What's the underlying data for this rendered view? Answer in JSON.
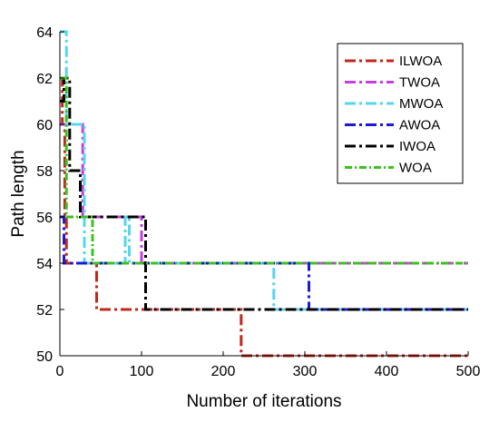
{
  "chart_data": {
    "type": "line",
    "xlabel": "Number of iterations",
    "ylabel": "Path length",
    "xlim": [
      0,
      500
    ],
    "ylim": [
      50,
      64
    ],
    "x_ticks": [
      0,
      100,
      200,
      300,
      400,
      500
    ],
    "y_ticks": [
      50,
      52,
      54,
      56,
      58,
      60,
      62,
      64
    ],
    "grid": false,
    "legend_position": "top-right",
    "series": [
      {
        "name": "ILWOA",
        "color": "#c0281c",
        "dash": "12,4,3,4",
        "points": [
          [
            0,
            62
          ],
          [
            3,
            62
          ],
          [
            3,
            60
          ],
          [
            6,
            60
          ],
          [
            6,
            56
          ],
          [
            8,
            56
          ],
          [
            8,
            54
          ],
          [
            45,
            54
          ],
          [
            45,
            52
          ],
          [
            222,
            52
          ],
          [
            222,
            50
          ],
          [
            500,
            50
          ]
        ]
      },
      {
        "name": "TWOA",
        "color": "#c43fe0",
        "dash": "12,4,3,4",
        "points": [
          [
            0,
            60
          ],
          [
            28,
            60
          ],
          [
            28,
            56
          ],
          [
            100,
            56
          ],
          [
            100,
            54
          ],
          [
            500,
            54
          ]
        ]
      },
      {
        "name": "MWOA",
        "color": "#55d6ee",
        "dash": "12,4,3,4",
        "points": [
          [
            0,
            64
          ],
          [
            8,
            64
          ],
          [
            8,
            60
          ],
          [
            30,
            60
          ],
          [
            30,
            54
          ],
          [
            80,
            54
          ],
          [
            80,
            56
          ],
          [
            85,
            56
          ],
          [
            85,
            54
          ],
          [
            262,
            54
          ],
          [
            262,
            52
          ],
          [
            500,
            52
          ]
        ]
      },
      {
        "name": "AWOA",
        "color": "#1a1ad6",
        "dash": "12,4,3,4",
        "points": [
          [
            0,
            56
          ],
          [
            5,
            56
          ],
          [
            5,
            54
          ],
          [
            305,
            54
          ],
          [
            305,
            52
          ],
          [
            500,
            52
          ]
        ]
      },
      {
        "name": "IWOA",
        "color": "#000000",
        "dash": "12,4,3,4",
        "points": [
          [
            0,
            61
          ],
          [
            5,
            61
          ],
          [
            5,
            62
          ],
          [
            12,
            62
          ],
          [
            12,
            58
          ],
          [
            25,
            58
          ],
          [
            25,
            56
          ],
          [
            105,
            56
          ],
          [
            105,
            52
          ],
          [
            500,
            52
          ]
        ]
      },
      {
        "name": "WOA",
        "color": "#3cc21c",
        "dash": "8,3,2,3",
        "points": [
          [
            0,
            62
          ],
          [
            8,
            62
          ],
          [
            8,
            56
          ],
          [
            40,
            56
          ],
          [
            40,
            54
          ],
          [
            500,
            54
          ]
        ]
      }
    ]
  }
}
